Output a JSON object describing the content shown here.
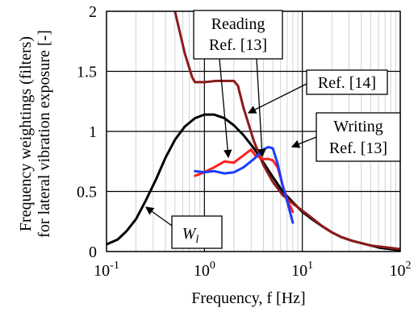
{
  "chart_data": {
    "type": "line",
    "xscale": "log",
    "xlim": [
      0.1,
      100
    ],
    "ylim": [
      0,
      2
    ],
    "grid": true,
    "xlabel": "Frequency, f [Hz]",
    "ylabel_line1": "Frequency weightings (filters)",
    "ylabel_line2": "for lateral vibration exposure [-]",
    "yticks": [
      "0",
      "0.5",
      "1",
      "1.5",
      "2"
    ],
    "xticks": [
      {
        "value": 0.1,
        "base": "10",
        "exp": "-1"
      },
      {
        "value": 1,
        "base": "10",
        "exp": "0"
      },
      {
        "value": 10,
        "base": "10",
        "exp": "1"
      },
      {
        "value": 100,
        "base": "10",
        "exp": "2"
      }
    ],
    "series": [
      {
        "key": "wl",
        "color": "#000000",
        "x": [
          0.1,
          0.13,
          0.16,
          0.2,
          0.25,
          0.32,
          0.4,
          0.5,
          0.63,
          0.8,
          1.0,
          1.25,
          1.6,
          2.0,
          2.5,
          3.2,
          4.0,
          5.0,
          6.3,
          8.0,
          10,
          12.5,
          16,
          20,
          25,
          32,
          40,
          50,
          63,
          80,
          100
        ],
        "y": [
          0.06,
          0.1,
          0.17,
          0.27,
          0.42,
          0.6,
          0.78,
          0.93,
          1.04,
          1.11,
          1.14,
          1.14,
          1.11,
          1.05,
          0.97,
          0.86,
          0.74,
          0.62,
          0.5,
          0.41,
          0.33,
          0.27,
          0.21,
          0.16,
          0.12,
          0.09,
          0.07,
          0.05,
          0.03,
          0.02,
          0.01
        ]
      },
      {
        "key": "ref14",
        "color": "#8b1a1a",
        "x": [
          0.5,
          0.63,
          0.75,
          0.8,
          1.0,
          1.3,
          1.6,
          2.0,
          2.2,
          2.5,
          3.2,
          4.0,
          5.0,
          6.3,
          8.0,
          10,
          12.5,
          16,
          20,
          25,
          32,
          40,
          50,
          63,
          80,
          100
        ],
        "y": [
          2.0,
          1.65,
          1.45,
          1.41,
          1.41,
          1.42,
          1.42,
          1.42,
          1.38,
          1.2,
          0.92,
          0.72,
          0.58,
          0.47,
          0.4,
          0.34,
          0.28,
          0.21,
          0.16,
          0.12,
          0.09,
          0.07,
          0.05,
          0.04,
          0.03,
          0.02
        ]
      },
      {
        "key": "reading",
        "color": "#ff2020",
        "x": [
          0.8,
          1.0,
          1.25,
          1.6,
          2.0,
          2.5,
          3.0,
          3.3,
          4.0,
          4.5,
          5.0,
          5.6,
          6.3,
          7.1,
          8.0
        ],
        "y": [
          0.63,
          0.66,
          0.7,
          0.75,
          0.74,
          0.8,
          0.85,
          0.8,
          0.77,
          0.77,
          0.76,
          0.7,
          0.55,
          0.42,
          0.33
        ]
      },
      {
        "key": "writing",
        "color": "#1a3cff",
        "x": [
          0.8,
          1.0,
          1.25,
          1.6,
          2.0,
          2.5,
          3.2,
          4.0,
          4.5,
          5.0,
          5.6,
          6.3,
          7.1,
          8.0
        ],
        "y": [
          0.67,
          0.66,
          0.67,
          0.65,
          0.66,
          0.7,
          0.77,
          0.85,
          0.87,
          0.86,
          0.73,
          0.55,
          0.4,
          0.24
        ]
      }
    ],
    "annotations": {
      "reading_line1": "Reading",
      "reading_line2": "Ref. [13]",
      "ref14": "Ref. [14]",
      "writing_line1": "Writing",
      "writing_line2": "Ref. [13]",
      "wl_main": "W",
      "wl_sub": "l"
    }
  }
}
